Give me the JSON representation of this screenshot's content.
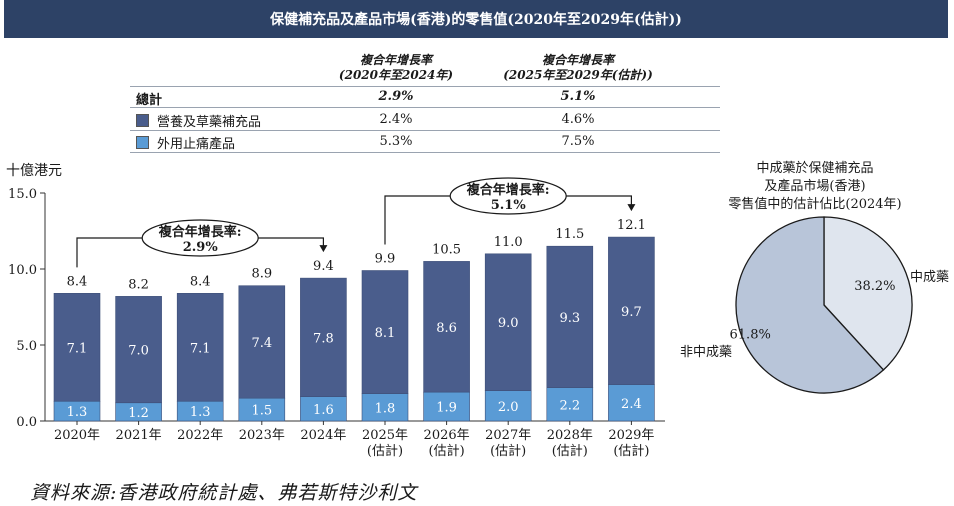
{
  "title": "保健補充品及產品市場(香港)的零售值(2020年至2029年(估計))",
  "cagr_table": {
    "col1_header": [
      "複合年增長率",
      "(2020年至2024年)"
    ],
    "col2_header": [
      "複合年增長率",
      "(2025年至2029年(估計))"
    ],
    "rows": [
      {
        "label": "總計",
        "v1": "2.9%",
        "v2": "5.1%"
      },
      {
        "label": "營養及草藥補充品",
        "v1": "2.4%",
        "v2": "4.6%"
      },
      {
        "label": "外用止痛產品",
        "v1": "5.3%",
        "v2": "7.5%"
      }
    ]
  },
  "colors": {
    "dark": "#4a5d8c",
    "light": "#5a9bd5",
    "title_bg": "#2d4266",
    "pie_big": "#b8c5d9",
    "pie_small": "#dfe5ee"
  },
  "chart_data": [
    {
      "type": "bar",
      "stacked": true,
      "ylabel": "十億港元",
      "ylim": [
        0,
        15
      ],
      "yticks": [
        "0.0",
        "5.0",
        "10.0",
        "15.0"
      ],
      "categories": [
        [
          "2020年"
        ],
        [
          "2021年"
        ],
        [
          "2022年"
        ],
        [
          "2023年"
        ],
        [
          "2024年"
        ],
        [
          "2025年",
          "(估計)"
        ],
        [
          "2026年",
          "(估計)"
        ],
        [
          "2027年",
          "(估計)"
        ],
        [
          "2028年",
          "(估計)"
        ],
        [
          "2029年",
          "(估計)"
        ]
      ],
      "series": [
        {
          "name": "外用止痛產品",
          "values": [
            1.3,
            1.2,
            1.3,
            1.5,
            1.6,
            1.8,
            1.9,
            2.0,
            2.2,
            2.4
          ]
        },
        {
          "name": "營養及草藥補充品",
          "values": [
            7.1,
            7.0,
            7.1,
            7.4,
            7.8,
            8.1,
            8.6,
            9.0,
            9.3,
            9.7
          ]
        }
      ],
      "totals": [
        8.4,
        8.2,
        8.4,
        8.9,
        9.4,
        9.9,
        10.5,
        11.0,
        11.5,
        12.1
      ],
      "annotations": [
        {
          "label": "複合年增長率:",
          "value": "2.9%",
          "from": 0,
          "to": 4
        },
        {
          "label": "複合年增長率:",
          "value": "5.1%",
          "from": 5,
          "to": 9
        }
      ]
    },
    {
      "type": "pie",
      "title": [
        "中成藥於保健補充品",
        "及產品市場(香港)",
        "零售值中的估計佔比(2024年)"
      ],
      "slices": [
        {
          "name": "中成藥",
          "value": 38.2,
          "label": "38.2%"
        },
        {
          "name": "非中成藥",
          "value": 61.8,
          "label": "61.8%"
        }
      ]
    }
  ],
  "source": "資料來源:香港政府統計處、弗若斯特沙利文"
}
